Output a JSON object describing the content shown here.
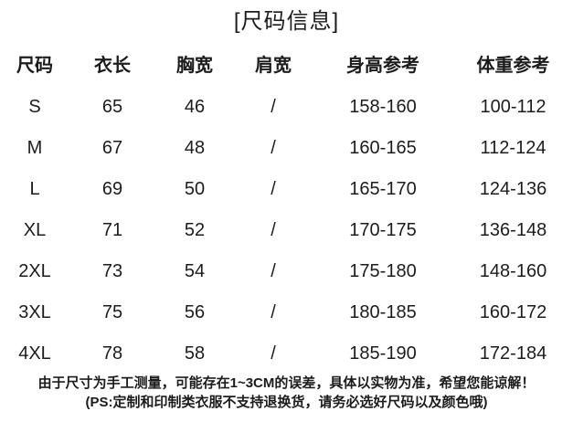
{
  "title": "[尺码信息]",
  "table": {
    "headers": [
      "尺码",
      "衣长",
      "胸宽",
      "肩宽",
      "身高参考",
      "体重参考"
    ],
    "rows": [
      [
        "S",
        "65",
        "46",
        "/",
        "158-160",
        "100-112"
      ],
      [
        "M",
        "67",
        "48",
        "/",
        "160-165",
        "112-124"
      ],
      [
        "L",
        "69",
        "50",
        "/",
        "165-170",
        "124-136"
      ],
      [
        "XL",
        "71",
        "52",
        "/",
        "170-175",
        "136-148"
      ],
      [
        "2XL",
        "73",
        "54",
        "/",
        "175-180",
        "148-160"
      ],
      [
        "3XL",
        "75",
        "56",
        "/",
        "180-185",
        "160-172"
      ],
      [
        "4XL",
        "78",
        "58",
        "/",
        "185-190",
        "172-184"
      ]
    ]
  },
  "footer": {
    "note1": "由于尺寸为手工测量，可能存在1~3CM的误差，具体以实物为准，希望您能谅解！",
    "note2": "(PS:定制和印制类衣服不支持退换货，请务必选好尺码以及颜色哦)"
  },
  "colors": {
    "text": "#1c1c1c",
    "background": "#ffffff"
  }
}
